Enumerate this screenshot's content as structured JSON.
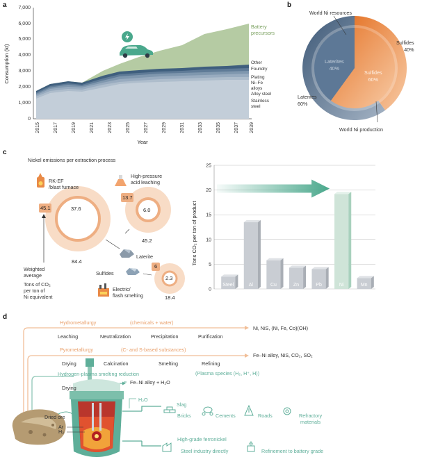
{
  "panel_a": {
    "letter": "a",
    "ylabel": "Consumption (kt)",
    "xlabel": "Year",
    "yticks": [
      "0",
      "1,000",
      "2,000",
      "3,000",
      "4,000",
      "5,000",
      "6,000",
      "7,000"
    ],
    "xticks": [
      "2015",
      "2017",
      "2019",
      "2021",
      "2023",
      "2025",
      "2027",
      "2029",
      "2031",
      "2033",
      "2035",
      "2037",
      "2039"
    ],
    "labels": {
      "battery": "Battery\nprecursors",
      "other": "Other",
      "foundry": "Foundry",
      "plating": "Plating",
      "nife": "Ni–Fe\nalloys",
      "alloy": "Alloy steel",
      "stainless": "Stainless\nsteel"
    },
    "colors": {
      "battery": "#b5cba3",
      "other": "#3f5f7e",
      "foundry": "#5f7b97",
      "plating": "#7f97ae",
      "nife": "#98abbf",
      "alloy": "#aebdcc",
      "stainless": "#c3ced9",
      "car": "#4aa88c"
    }
  },
  "panel_b": {
    "letter": "b",
    "world_resources": "World Ni resources",
    "world_production": "World Ni production",
    "outer_sulfides": "Sulfides\n40%",
    "outer_laterites": "Laterites\n60%",
    "inner_laterites": "Laterites\n40%",
    "inner_sulfides": "Sulfides\n60%",
    "colors": {
      "sulfide": "#ec8a45",
      "laterite": "#4d6886"
    }
  },
  "panel_c": {
    "letter": "c",
    "title": "Nickel emissions per extraction process",
    "rkef": "RK-EF\n/blast furnace",
    "hpal": "High-pressure\nacid leaching",
    "laterite": "Laterite",
    "sulfides": "Sulfides",
    "electric": "Electric/\nflash smelting",
    "weighted": "Weighted\naverage",
    "tons": "Tons of CO₂\nper ton of\nNi equivalent",
    "values": {
      "rkef_box": "45.1",
      "rkef_inner": "37.6",
      "rkef_outer": "84.4",
      "hpal_box": "13.7",
      "hpal_inner": "6.0",
      "hpal_outer": "45.2",
      "sulf_box": "6",
      "sulf_inner": "2.3",
      "sulf_outer": "18.4"
    }
  },
  "chart_data": {
    "type": "bar",
    "categories": [
      "Steel",
      "Al",
      "Cu",
      "Zn",
      "Pb",
      "Ni",
      "Mn"
    ],
    "values": [
      2.5,
      13.5,
      5.8,
      4.3,
      4.0,
      19.2,
      2.2
    ],
    "ylabel": "Tons CO₂ per ton of product",
    "ylim": [
      0,
      25
    ],
    "yticks": [
      "0",
      "5",
      "10",
      "15",
      "20",
      "25"
    ],
    "colors": {
      "bar": "#c9cdd3",
      "ni": "#cfe4d8",
      "arrow": "#4aa88c"
    }
  },
  "panel_d": {
    "letter": "d",
    "hydro": "Hydrometallurgy",
    "hydro_note": "(chemicals + water)",
    "hydro_steps": [
      "Leaching",
      "Neutralization",
      "Precipitation",
      "Purification"
    ],
    "hydro_out": "Ni, NiS, (Ni, Fe, Co)(OH)",
    "pyro": "Pyrometallurgy",
    "pyro_note": "(C- and S-based substances)",
    "pyro_steps": [
      "Drying",
      "Calcination",
      "Smelting",
      "Refining"
    ],
    "pyro_out": "Fe–Ni alloy, NiS, CO₂, SO₂",
    "hps": "Hydrogen-plasma smelting reduction",
    "hps_note": "(Plasma species (H₂, H⁺, H))",
    "hps_drying": "Drying",
    "hps_out": "Fe–Ni alloy + H₂O",
    "dried_ore": "Dried ore",
    "ar": "Ar",
    "h2": "H₂",
    "h2o": "H₂O",
    "slag": "Slag",
    "bricks": "Bricks",
    "cements": "Cements",
    "roads": "Roads",
    "refractory": "Refractory\nmaterials",
    "ferronickel": "High-grade ferronickel",
    "steel_direct": "Steel industry directly",
    "battery_grade": "Refinement to battery grade",
    "colors": {
      "hydro": "#e9a06b",
      "pyro": "#e9a06b",
      "hps": "#5eae99"
    }
  }
}
